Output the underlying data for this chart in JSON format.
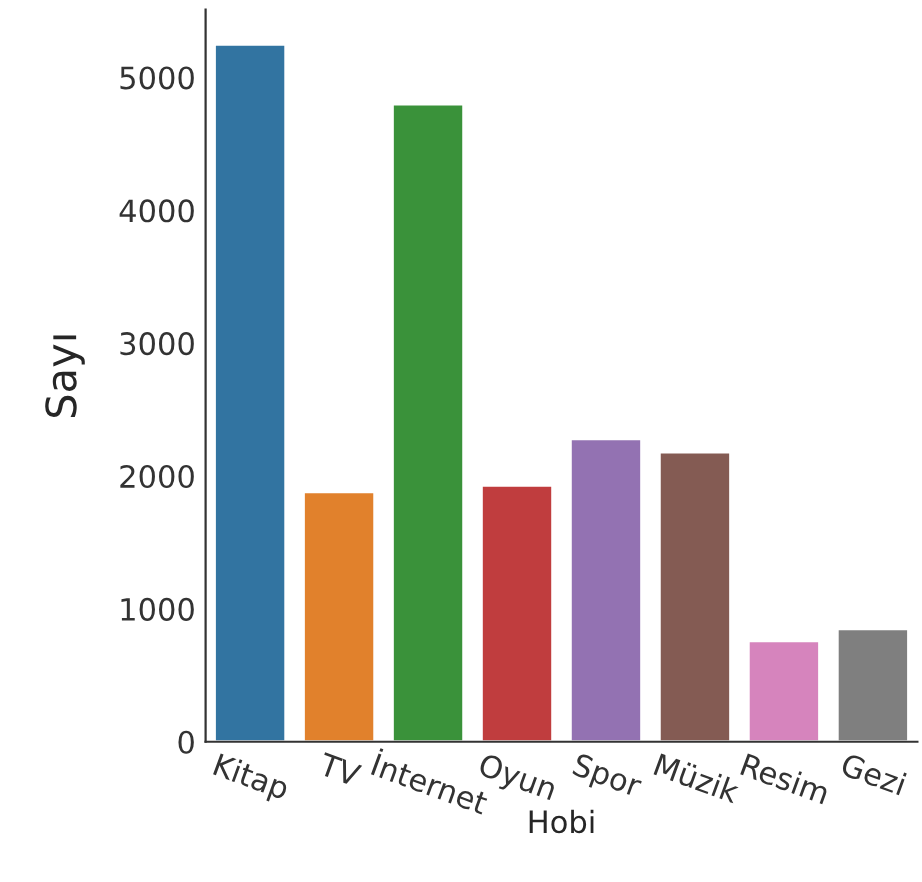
{
  "chart_data": {
    "type": "bar",
    "xlabel": "Hobi",
    "ylabel": "Sayı",
    "categories": [
      "Kitap",
      "TV",
      "İnternet",
      "Oyun",
      "Spor",
      "Müzik",
      "Resim",
      "Gezi"
    ],
    "values": [
      5250,
      1880,
      4800,
      1930,
      2280,
      2180,
      760,
      850
    ],
    "colors": [
      "#3274a1",
      "#e1812c",
      "#3a923a",
      "#c03d3e",
      "#9372b2",
      "#845b53",
      "#d684bd",
      "#7f7f7f"
    ],
    "ylim": [
      0,
      5510
    ],
    "yticks": [
      0,
      1000,
      2000,
      3000,
      4000,
      5000
    ],
    "grid": false,
    "legend": false
  }
}
